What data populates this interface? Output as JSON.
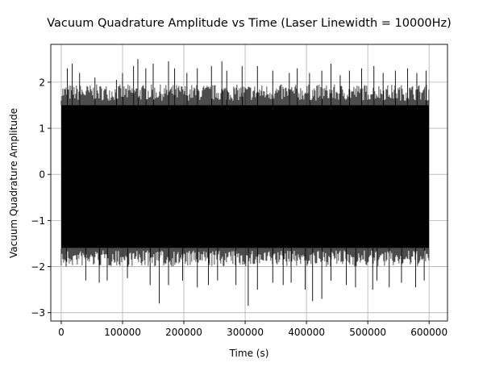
{
  "chart_data": {
    "type": "line",
    "title": "Vacuum Quadrature Amplitude vs Time (Laser Linewidth = 10000Hz)",
    "xlabel": "Time (s)",
    "ylabel": "Vacuum Quadrature Amplitude",
    "xlim": [
      -17000,
      630000
    ],
    "ylim": [
      -3.18,
      2.82
    ],
    "x_ticks": [
      0,
      100000,
      200000,
      300000,
      400000,
      500000,
      600000
    ],
    "x_tick_labels": [
      "0",
      "100000",
      "200000",
      "300000",
      "400000",
      "500000",
      "600000"
    ],
    "y_ticks": [
      -3,
      -2,
      -1,
      0,
      1,
      2
    ],
    "y_tick_labels": [
      "−3",
      "−2",
      "−1",
      "0",
      "1",
      "2"
    ],
    "grid": true,
    "series": [
      {
        "color": "#000000",
        "x_range": [
          0,
          600000
        ],
        "band_upper": 1.5,
        "band_lower": -1.6,
        "peaks_up": [
          [
            10000,
            2.3
          ],
          [
            18000,
            2.4
          ],
          [
            30000,
            2.2
          ],
          [
            55000,
            2.1
          ],
          [
            90000,
            2.05
          ],
          [
            100000,
            2.2
          ],
          [
            118000,
            2.35
          ],
          [
            125000,
            2.5
          ],
          [
            138000,
            2.3
          ],
          [
            150000,
            2.4
          ],
          [
            175000,
            2.45
          ],
          [
            185000,
            2.3
          ],
          [
            205000,
            2.2
          ],
          [
            222000,
            2.3
          ],
          [
            245000,
            2.35
          ],
          [
            262000,
            2.45
          ],
          [
            270000,
            2.25
          ],
          [
            295000,
            2.35
          ],
          [
            320000,
            2.35
          ],
          [
            345000,
            2.25
          ],
          [
            372000,
            2.2
          ],
          [
            385000,
            2.3
          ],
          [
            405000,
            2.2
          ],
          [
            425000,
            2.25
          ],
          [
            440000,
            2.4
          ],
          [
            455000,
            2.15
          ],
          [
            470000,
            2.25
          ],
          [
            490000,
            2.3
          ],
          [
            510000,
            2.35
          ],
          [
            525000,
            2.2
          ],
          [
            545000,
            2.25
          ],
          [
            565000,
            2.3
          ],
          [
            580000,
            2.2
          ],
          [
            595000,
            2.25
          ]
        ],
        "peaks_down": [
          [
            8000,
            -2.0
          ],
          [
            40000,
            -2.3
          ],
          [
            62000,
            -2.35
          ],
          [
            75000,
            -2.3
          ],
          [
            108000,
            -2.25
          ],
          [
            145000,
            -2.4
          ],
          [
            160000,
            -2.8
          ],
          [
            175000,
            -2.4
          ],
          [
            198000,
            -2.3
          ],
          [
            222000,
            -2.45
          ],
          [
            240000,
            -2.4
          ],
          [
            255000,
            -2.3
          ],
          [
            285000,
            -2.4
          ],
          [
            305000,
            -2.85
          ],
          [
            320000,
            -2.5
          ],
          [
            345000,
            -2.35
          ],
          [
            362000,
            -2.4
          ],
          [
            375000,
            -2.35
          ],
          [
            398000,
            -2.5
          ],
          [
            410000,
            -2.75
          ],
          [
            425000,
            -2.7
          ],
          [
            440000,
            -2.3
          ],
          [
            465000,
            -2.4
          ],
          [
            480000,
            -2.45
          ],
          [
            508000,
            -2.5
          ],
          [
            515000,
            -2.3
          ],
          [
            535000,
            -2.45
          ],
          [
            555000,
            -2.35
          ],
          [
            578000,
            -2.45
          ],
          [
            592000,
            -2.3
          ]
        ]
      }
    ]
  }
}
